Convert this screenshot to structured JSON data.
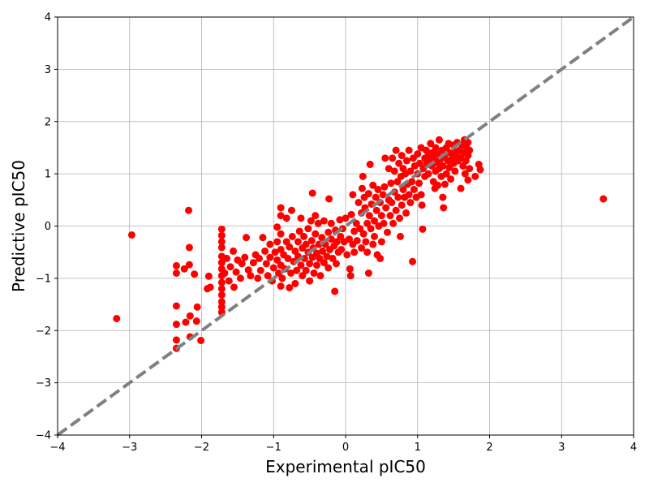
{
  "chart_data": {
    "type": "scatter",
    "title": "",
    "xlabel": "Experimental pIC50",
    "ylabel": "Predictive pIC50",
    "xlim": [
      -4,
      4
    ],
    "ylim": [
      -4,
      4
    ],
    "xticks": [
      "−4",
      "−3",
      "−2",
      "−1",
      "0",
      "1",
      "2",
      "3",
      "4"
    ],
    "yticks": [
      "−4",
      "−3",
      "−2",
      "−1",
      "0",
      "1",
      "2",
      "3",
      "4"
    ],
    "grid": true,
    "reference_line": {
      "from": [
        -4,
        -4
      ],
      "to": [
        4,
        4
      ],
      "color": "#808080",
      "style": "dashed"
    },
    "series": [
      {
        "color": "#ff0000",
        "points": [
          [
            -3.18,
            -1.77
          ],
          [
            -2.97,
            -0.17
          ],
          [
            -2.35,
            -0.76
          ],
          [
            -2.35,
            -0.9
          ],
          [
            -2.35,
            -1.53
          ],
          [
            -2.35,
            -1.88
          ],
          [
            -2.35,
            -2.18
          ],
          [
            -2.35,
            -2.34
          ],
          [
            -2.24,
            -0.82
          ],
          [
            -2.22,
            -1.84
          ],
          [
            -2.18,
            0.3
          ],
          [
            -2.17,
            -0.41
          ],
          [
            -2.17,
            -0.74
          ],
          [
            -2.16,
            -1.72
          ],
          [
            -2.16,
            -2.12
          ],
          [
            -2.1,
            -0.92
          ],
          [
            -2.07,
            -1.82
          ],
          [
            -2.06,
            -1.55
          ],
          [
            -2.01,
            -2.19
          ],
          [
            -1.92,
            -1.2
          ],
          [
            -1.88,
            -1.17
          ],
          [
            -1.9,
            -0.96
          ],
          [
            -1.72,
            -0.06
          ],
          [
            -1.72,
            -0.18
          ],
          [
            -1.72,
            -0.3
          ],
          [
            -1.72,
            -0.41
          ],
          [
            -1.72,
            -0.58
          ],
          [
            -1.72,
            -0.7
          ],
          [
            -1.72,
            -0.82
          ],
          [
            -1.72,
            -0.95
          ],
          [
            -1.72,
            -1.08
          ],
          [
            -1.72,
            -1.2
          ],
          [
            -1.72,
            -1.32
          ],
          [
            -1.72,
            -1.45
          ],
          [
            -1.72,
            -1.55
          ],
          [
            -1.72,
            -1.65
          ],
          [
            -1.68,
            -0.9
          ],
          [
            -1.65,
            -0.62
          ],
          [
            -1.62,
            -1.05
          ],
          [
            -1.6,
            -0.78
          ],
          [
            -1.56,
            -0.48
          ],
          [
            -1.55,
            -1.17
          ],
          [
            -1.52,
            -0.88
          ],
          [
            -1.5,
            -0.65
          ],
          [
            -1.46,
            -1.0
          ],
          [
            -1.44,
            -0.72
          ],
          [
            -1.4,
            -0.6
          ],
          [
            -1.38,
            -0.22
          ],
          [
            -1.35,
            -0.84
          ],
          [
            -1.32,
            -0.95
          ],
          [
            -1.28,
            -0.7
          ],
          [
            -1.25,
            -0.55
          ],
          [
            -1.22,
            -1.0
          ],
          [
            -1.2,
            -0.62
          ],
          [
            -1.18,
            -0.85
          ],
          [
            -1.15,
            -0.22
          ],
          [
            -1.12,
            -0.48
          ],
          [
            -1.1,
            -0.72
          ],
          [
            -1.08,
            -0.95
          ],
          [
            -1.05,
            -0.35
          ],
          [
            -1.05,
            -0.6
          ],
          [
            -1.02,
            -1.05
          ],
          [
            -1.0,
            -0.8
          ],
          [
            -0.98,
            -0.5
          ],
          [
            -0.95,
            -0.02
          ],
          [
            -0.95,
            -0.3
          ],
          [
            -0.95,
            -0.65
          ],
          [
            -0.93,
            -0.9
          ],
          [
            -0.9,
            0.35
          ],
          [
            -0.9,
            0.2
          ],
          [
            -0.9,
            -0.15
          ],
          [
            -0.9,
            -0.45
          ],
          [
            -0.9,
            -0.75
          ],
          [
            -0.9,
            -1.15
          ],
          [
            -0.88,
            -1.0
          ],
          [
            -0.86,
            -0.55
          ],
          [
            -0.84,
            -0.82
          ],
          [
            -0.82,
            0.15
          ],
          [
            -0.82,
            -0.3
          ],
          [
            -0.8,
            -0.62
          ],
          [
            -0.78,
            -0.4
          ],
          [
            -0.78,
            -1.18
          ],
          [
            -0.76,
            -0.9
          ],
          [
            -0.75,
            0.3
          ],
          [
            -0.74,
            -0.2
          ],
          [
            -0.72,
            -0.68
          ],
          [
            -0.7,
            -0.48
          ],
          [
            -0.7,
            -1.1
          ],
          [
            -0.68,
            -0.85
          ],
          [
            -0.66,
            -0.3
          ],
          [
            -0.66,
            -0.58
          ],
          [
            -0.64,
            -0.1
          ],
          [
            -0.62,
            0.15
          ],
          [
            -0.62,
            -0.75
          ],
          [
            -0.6,
            -0.42
          ],
          [
            -0.6,
            -0.95
          ],
          [
            -0.58,
            -0.2
          ],
          [
            -0.57,
            -0.62
          ],
          [
            -0.55,
            -0.35
          ],
          [
            -0.55,
            -0.85
          ],
          [
            -0.52,
            -0.05
          ],
          [
            -0.52,
            -0.5
          ],
          [
            -0.5,
            -0.72
          ],
          [
            -0.5,
            -1.05
          ],
          [
            -0.48,
            0.1
          ],
          [
            -0.47,
            -0.28
          ],
          [
            -0.46,
            0.63
          ],
          [
            -0.46,
            -0.6
          ],
          [
            -0.45,
            -0.42
          ],
          [
            -0.44,
            -0.9
          ],
          [
            -0.42,
            0.2
          ],
          [
            -0.42,
            -0.15
          ],
          [
            -0.4,
            -0.52
          ],
          [
            -0.4,
            -0.75
          ],
          [
            -0.38,
            0.05
          ],
          [
            -0.37,
            -0.35
          ],
          [
            -0.36,
            -0.62
          ],
          [
            -0.35,
            -0.95
          ],
          [
            -0.33,
            -0.22
          ],
          [
            -0.32,
            -0.48
          ],
          [
            -0.3,
            -0.7
          ],
          [
            -0.3,
            0.1
          ],
          [
            -0.28,
            -0.35
          ],
          [
            -0.26,
            -0.58
          ],
          [
            -0.24,
            -0.12
          ],
          [
            -0.24,
            -0.8
          ],
          [
            -0.23,
            0.52
          ],
          [
            -0.22,
            -0.45
          ],
          [
            -0.2,
            -0.25
          ],
          [
            -0.2,
            0.05
          ],
          [
            -0.18,
            -0.62
          ],
          [
            -0.16,
            -0.38
          ],
          [
            -0.15,
            -1.25
          ],
          [
            -0.14,
            -0.08
          ],
          [
            -0.13,
            -0.72
          ],
          [
            -0.12,
            -0.3
          ],
          [
            -0.1,
            -0.5
          ],
          [
            -0.08,
            0.12
          ],
          [
            -0.07,
            -0.2
          ],
          [
            -0.06,
            -0.45
          ],
          [
            -0.04,
            -0.05
          ],
          [
            -0.02,
            -0.3
          ],
          [
            0.0,
            0.15
          ],
          [
            0.02,
            -0.55
          ],
          [
            0.05,
            -0.25
          ],
          [
            0.06,
            -0.82
          ],
          [
            0.07,
            -0.95
          ],
          [
            0.08,
            0.22
          ],
          [
            0.1,
            -0.35
          ],
          [
            0.1,
            0.6
          ],
          [
            0.12,
            -0.1
          ],
          [
            0.12,
            -0.5
          ],
          [
            0.15,
            0.05
          ],
          [
            0.16,
            -0.28
          ],
          [
            0.18,
            0.45
          ],
          [
            0.2,
            -0.05
          ],
          [
            0.22,
            0.25
          ],
          [
            0.22,
            -0.42
          ],
          [
            0.23,
            0.72
          ],
          [
            0.24,
            0.95
          ],
          [
            0.25,
            -0.15
          ],
          [
            0.26,
            0.55
          ],
          [
            0.27,
            0.35
          ],
          [
            0.28,
            -0.3
          ],
          [
            0.3,
            0.05
          ],
          [
            0.3,
            -0.5
          ],
          [
            0.32,
            0.62
          ],
          [
            0.32,
            -0.9
          ],
          [
            0.33,
            0.2
          ],
          [
            0.34,
            1.18
          ],
          [
            0.35,
            -0.05
          ],
          [
            0.36,
            0.42
          ],
          [
            0.38,
            -0.35
          ],
          [
            0.38,
            0.78
          ],
          [
            0.4,
            0.1
          ],
          [
            0.4,
            -0.2
          ],
          [
            0.42,
            0.55
          ],
          [
            0.43,
            0.3
          ],
          [
            0.44,
            -0.55
          ],
          [
            0.45,
            0.7
          ],
          [
            0.46,
            0.0
          ],
          [
            0.48,
            0.45
          ],
          [
            0.48,
            -0.62
          ],
          [
            0.5,
            0.2
          ],
          [
            0.5,
            -0.3
          ],
          [
            0.52,
            0.6
          ],
          [
            0.53,
            0.05
          ],
          [
            0.54,
            0.75
          ],
          [
            0.55,
            1.3
          ],
          [
            0.56,
            0.35
          ],
          [
            0.58,
            -0.12
          ],
          [
            0.6,
            0.5
          ],
          [
            0.6,
            1.1
          ],
          [
            0.62,
            0.2
          ],
          [
            0.63,
            0.82
          ],
          [
            0.64,
            0.45
          ],
          [
            0.65,
            1.3
          ],
          [
            0.66,
            0.05
          ],
          [
            0.68,
            0.65
          ],
          [
            0.68,
            1.05
          ],
          [
            0.7,
            0.3
          ],
          [
            0.7,
            1.45
          ],
          [
            0.72,
            0.85
          ],
          [
            0.73,
            0.55
          ],
          [
            0.74,
            1.2
          ],
          [
            0.75,
            0.15
          ],
          [
            0.76,
            -0.2
          ],
          [
            0.77,
            0.95
          ],
          [
            0.78,
            0.4
          ],
          [
            0.78,
            1.35
          ],
          [
            0.8,
            0.7
          ],
          [
            0.8,
            1.1
          ],
          [
            0.82,
            0.55
          ],
          [
            0.83,
            1.0
          ],
          [
            0.84,
            0.25
          ],
          [
            0.85,
            1.25
          ],
          [
            0.86,
            0.8
          ],
          [
            0.88,
            0.6
          ],
          [
            0.88,
            1.45
          ],
          [
            0.9,
            1.05
          ],
          [
            0.9,
            0.45
          ],
          [
            0.92,
            0.85
          ],
          [
            0.93,
            -0.68
          ],
          [
            0.94,
            1.3
          ],
          [
            0.95,
            0.7
          ],
          [
            0.96,
            1.15
          ],
          [
            0.98,
            0.55
          ],
          [
            1.0,
            1.0
          ],
          [
            1.0,
            1.38
          ],
          [
            1.02,
            0.82
          ],
          [
            1.03,
            1.2
          ],
          [
            1.05,
            0.6
          ],
          [
            1.05,
            1.5
          ],
          [
            1.06,
            0.4
          ],
          [
            1.07,
            -0.06
          ],
          [
            1.08,
            1.1
          ],
          [
            1.1,
            1.3
          ],
          [
            1.1,
            0.95
          ],
          [
            1.12,
            1.45
          ],
          [
            1.13,
            1.2
          ],
          [
            1.15,
            1.0
          ],
          [
            1.15,
            1.35
          ],
          [
            1.17,
            1.25
          ],
          [
            1.18,
            1.58
          ],
          [
            1.2,
            1.15
          ],
          [
            1.2,
            1.4
          ],
          [
            1.22,
            0.85
          ],
          [
            1.22,
            1.3
          ],
          [
            1.24,
            0.72
          ],
          [
            1.25,
            1.05
          ],
          [
            1.25,
            1.5
          ],
          [
            1.27,
            1.22
          ],
          [
            1.28,
            0.78
          ],
          [
            1.28,
            1.38
          ],
          [
            1.3,
            1.1
          ],
          [
            1.3,
            1.65
          ],
          [
            1.32,
            1.28
          ],
          [
            1.33,
            0.95
          ],
          [
            1.34,
            1.45
          ],
          [
            1.35,
            0.55
          ],
          [
            1.35,
            1.15
          ],
          [
            1.36,
            0.35
          ],
          [
            1.37,
            1.32
          ],
          [
            1.38,
            0.8
          ],
          [
            1.4,
            1.5
          ],
          [
            1.4,
            1.0
          ],
          [
            1.42,
            1.25
          ],
          [
            1.43,
            1.58
          ],
          [
            1.44,
            1.12
          ],
          [
            1.45,
            1.4
          ],
          [
            1.46,
            0.9
          ],
          [
            1.48,
            1.3
          ],
          [
            1.5,
            1.55
          ],
          [
            1.5,
            1.2
          ],
          [
            1.52,
            1.05
          ],
          [
            1.53,
            1.42
          ],
          [
            1.54,
            1.35
          ],
          [
            1.55,
            1.6
          ],
          [
            1.56,
            1.25
          ],
          [
            1.58,
            1.45
          ],
          [
            1.6,
            0.72
          ],
          [
            1.6,
            1.3
          ],
          [
            1.62,
            1.55
          ],
          [
            1.63,
            1.15
          ],
          [
            1.64,
            1.4
          ],
          [
            1.65,
            1.65
          ],
          [
            1.66,
            1.0
          ],
          [
            1.67,
            1.25
          ],
          [
            1.68,
            1.5
          ],
          [
            1.7,
            0.88
          ],
          [
            1.7,
            1.35
          ],
          [
            1.7,
            1.6
          ],
          [
            1.72,
            1.1
          ],
          [
            1.72,
            1.45
          ],
          [
            1.8,
            0.95
          ],
          [
            1.85,
            1.18
          ],
          [
            1.87,
            1.08
          ],
          [
            3.58,
            0.52
          ]
        ]
      }
    ]
  }
}
